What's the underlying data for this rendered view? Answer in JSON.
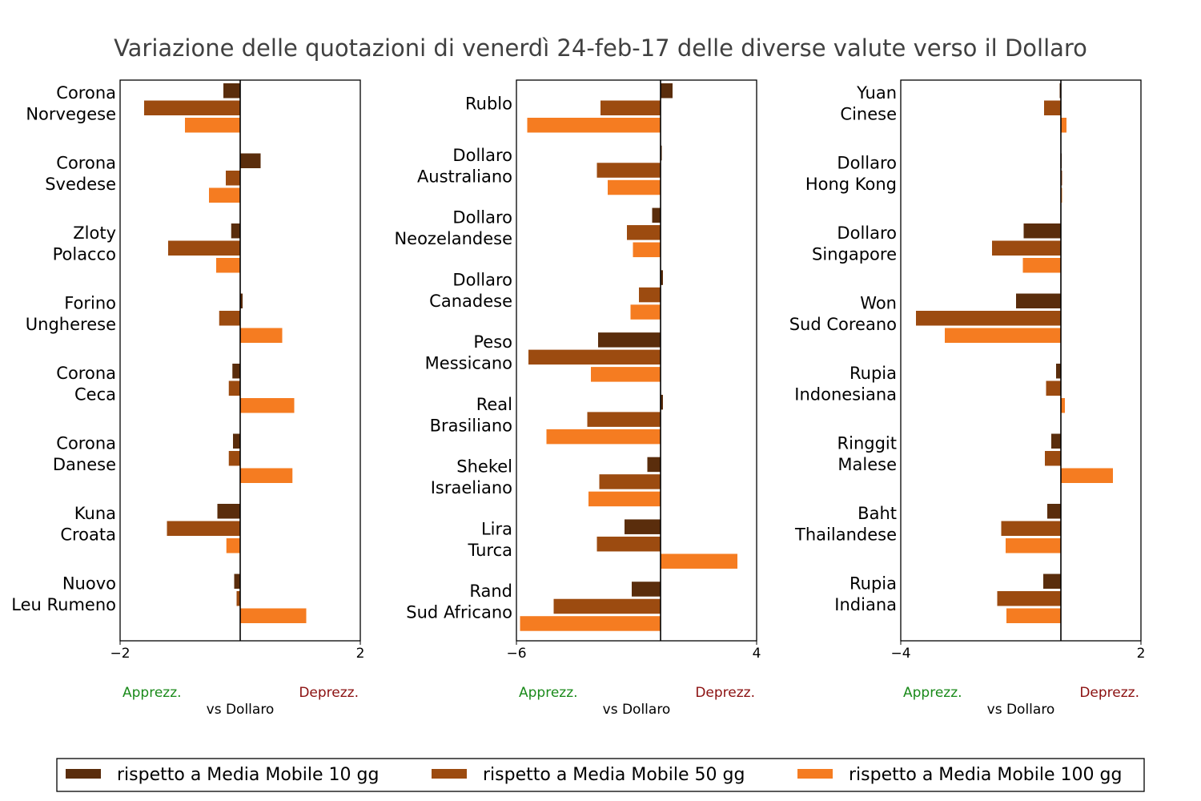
{
  "chart_data": {
    "type": "bar",
    "orientation": "horizontal",
    "title": "Variazione delle quotazioni di venerdì 24-feb-17 delle diverse valute verso il Dollaro",
    "colors": {
      "mm10": "#5a2d0c",
      "mm50": "#9c4b10",
      "mm100": "#f57c21",
      "appreciation": "#1a8a1a",
      "depreciation": "#8b1010"
    },
    "legend": {
      "placement": "bottom",
      "entries": [
        "rispetto a Media Mobile 10 gg",
        "rispetto a Media Mobile 50 gg",
        "rispetto a Media Mobile 100 gg"
      ]
    },
    "panels": [
      {
        "xlim": [
          -2,
          2
        ],
        "ticks": [
          "−2",
          "2"
        ],
        "note_left": "Apprezz.",
        "note_right": "Deprezz.",
        "xlabel": "vs Dollaro",
        "categories": [
          {
            "label": [
              "Corona",
              "Norvegese"
            ],
            "values": [
              -0.28,
              -1.6,
              -0.92
            ]
          },
          {
            "label": [
              "Corona",
              "Svedese"
            ],
            "values": [
              0.34,
              -0.24,
              -0.52
            ]
          },
          {
            "label": [
              "Zloty",
              "Polacco"
            ],
            "values": [
              -0.15,
              -1.2,
              -0.4
            ]
          },
          {
            "label": [
              "Forino",
              "Ungherese"
            ],
            "values": [
              0.04,
              -0.35,
              0.7
            ]
          },
          {
            "label": [
              "Corona",
              "Ceca"
            ],
            "values": [
              -0.13,
              -0.19,
              0.9
            ]
          },
          {
            "label": [
              "Corona",
              "Danese"
            ],
            "values": [
              -0.12,
              -0.19,
              0.87
            ]
          },
          {
            "label": [
              "Kuna",
              "Croata"
            ],
            "values": [
              -0.38,
              -1.22,
              -0.23
            ]
          },
          {
            "label": [
              "Nuovo",
              "Leu Rumeno"
            ],
            "values": [
              -0.1,
              -0.06,
              1.1
            ]
          }
        ]
      },
      {
        "xlim": [
          -6,
          4
        ],
        "ticks": [
          "−6",
          "4"
        ],
        "note_left": "Apprezz.",
        "note_right": "Deprezz.",
        "xlabel": "vs Dollaro",
        "categories": [
          {
            "label": [
              "Rublo"
            ],
            "values": [
              0.5,
              -2.5,
              -5.55
            ]
          },
          {
            "label": [
              "Dollaro",
              "Australiano"
            ],
            "values": [
              0.05,
              -2.65,
              -2.2
            ]
          },
          {
            "label": [
              "Dollaro",
              "Neozelandese"
            ],
            "values": [
              -0.35,
              -1.4,
              -1.15
            ]
          },
          {
            "label": [
              "Dollaro",
              "Canadese"
            ],
            "values": [
              0.1,
              -0.9,
              -1.25
            ]
          },
          {
            "label": [
              "Peso",
              "Messicano"
            ],
            "values": [
              -2.6,
              -5.5,
              -2.9
            ]
          },
          {
            "label": [
              "Real",
              "Brasiliano"
            ],
            "values": [
              0.1,
              -3.05,
              -4.75
            ]
          },
          {
            "label": [
              "Shekel",
              "Israeliano"
            ],
            "values": [
              -0.55,
              -2.55,
              -3.0
            ]
          },
          {
            "label": [
              "Lira",
              "Turca"
            ],
            "values": [
              -1.5,
              -2.65,
              3.2
            ]
          },
          {
            "label": [
              "Rand",
              "Sud Africano"
            ],
            "values": [
              -1.2,
              -4.45,
              -5.85
            ]
          }
        ]
      },
      {
        "xlim": [
          -4,
          2
        ],
        "ticks": [
          "−4",
          "2"
        ],
        "note_left": "Apprezz.",
        "note_right": "Deprezz.",
        "xlabel": "vs Dollaro",
        "categories": [
          {
            "label": [
              "Yuan",
              "Cinese"
            ],
            "values": [
              -0.03,
              -0.42,
              0.14
            ]
          },
          {
            "label": [
              "Dollaro",
              "Hong Kong"
            ],
            "values": [
              0.01,
              0.03,
              0.03
            ]
          },
          {
            "label": [
              "Dollaro",
              "Singapore"
            ],
            "values": [
              -0.93,
              -1.72,
              -0.95
            ]
          },
          {
            "label": [
              "Won",
              "Sud Coreano"
            ],
            "values": [
              -1.12,
              -3.62,
              -2.9
            ]
          },
          {
            "label": [
              "Rupia",
              "Indonesiana"
            ],
            "values": [
              -0.12,
              -0.37,
              0.1
            ]
          },
          {
            "label": [
              "Ringgit",
              "Malese"
            ],
            "values": [
              -0.24,
              -0.4,
              1.3
            ]
          },
          {
            "label": [
              "Baht",
              "Thailandese"
            ],
            "values": [
              -0.34,
              -1.49,
              -1.38
            ]
          },
          {
            "label": [
              "Rupia",
              "Indiana"
            ],
            "values": [
              -0.44,
              -1.59,
              -1.36
            ]
          }
        ]
      }
    ]
  }
}
